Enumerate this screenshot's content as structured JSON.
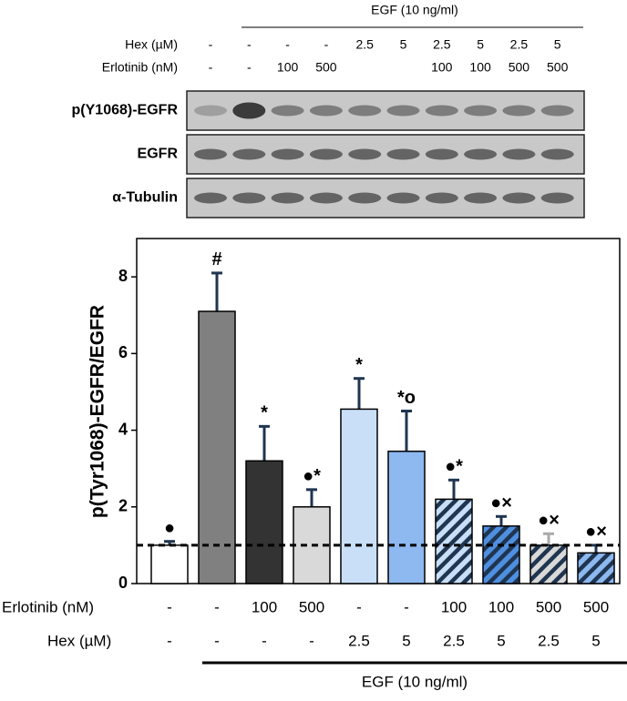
{
  "blot": {
    "header": "EGF (10 ng/ml)",
    "rows": [
      {
        "label": "Hex (µM)",
        "values": [
          "-",
          "-",
          "-",
          "-",
          "2.5",
          "5",
          "2.5",
          "5",
          "2.5",
          "5"
        ]
      },
      {
        "label": "Erlotinib (nM)",
        "values": [
          "-",
          "-",
          "100",
          "500",
          null,
          null,
          "100",
          "100",
          "500",
          "500"
        ]
      }
    ],
    "bands": [
      "p(Y1068)-EGFR",
      "EGFR",
      "α-Tubulin"
    ]
  },
  "chart_data": {
    "type": "bar",
    "ylabel": "p(Tyr1068)-EGFR/EGFR",
    "values": [
      1.0,
      7.1,
      3.2,
      2.0,
      4.55,
      3.45,
      2.2,
      1.5,
      1.0,
      0.8
    ],
    "errors": [
      0.1,
      1.0,
      0.9,
      0.45,
      0.8,
      1.05,
      0.5,
      0.25,
      0.3,
      0.2
    ],
    "colors": [
      "#ffffff",
      "#808080",
      "#333333",
      "#d9d9d9",
      "#c9dff7",
      "#8db8f0",
      "#c9dff7",
      "#4f8fe0",
      "#d9d9d9",
      "#8db8f0"
    ],
    "hatched": [
      false,
      false,
      false,
      false,
      false,
      false,
      true,
      true,
      true,
      true
    ],
    "annotations": [
      "●",
      "#",
      "*",
      "●*",
      "*",
      "*o",
      "●*",
      "●×",
      "●×",
      "●×"
    ],
    "ylim": [
      0,
      9
    ],
    "yticks": [
      0,
      2,
      4,
      6,
      8
    ],
    "ref_line": 1,
    "condition_rows": [
      {
        "label": "Erlotinib (nM)",
        "values": [
          "-",
          "-",
          "100",
          "500",
          "-",
          "-",
          "100",
          "100",
          "500",
          "500"
        ]
      },
      {
        "label": "Hex (µM)",
        "values": [
          "-",
          "-",
          "-",
          "-",
          "2.5",
          "5",
          "2.5",
          "5",
          "2.5",
          "5"
        ]
      }
    ],
    "group_label": "EGF (10 ng/ml)"
  }
}
